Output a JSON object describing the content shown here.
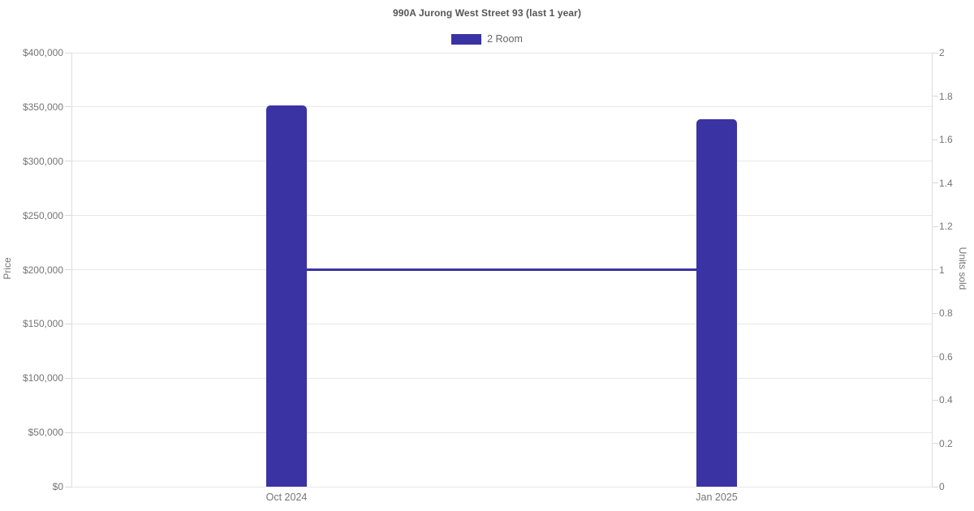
{
  "chart_data": {
    "type": "bar",
    "subtype": "bar+line combo, dual y-axis",
    "title": "990A Jurong West Street 93 (last 1 year)",
    "categories": [
      "Oct 2024",
      "Jan 2025"
    ],
    "series": [
      {
        "name": "2 Room",
        "type": "bar",
        "axis": "left",
        "measure": "Price",
        "values": [
          351500,
          339000
        ]
      },
      {
        "name": "2 Room",
        "type": "line",
        "axis": "right",
        "measure": "Units sold",
        "values": [
          1,
          1
        ]
      }
    ],
    "left_axis": {
      "label": "Price",
      "min": 0,
      "max": 400000,
      "tick_values": [
        400000,
        350000,
        300000,
        250000,
        200000,
        150000,
        100000,
        50000,
        0
      ],
      "tick_labels": [
        "$400,000",
        "$350,000",
        "$300,000",
        "$250,000",
        "$200,000",
        "$150,000",
        "$100,000",
        "$50,000",
        "$0"
      ]
    },
    "right_axis": {
      "label": "Units sold",
      "min": 0,
      "max": 2,
      "tick_values": [
        2,
        1.8,
        1.6,
        1.4,
        1.2,
        1,
        0.8,
        0.6,
        0.4,
        0.2,
        0
      ],
      "tick_labels": [
        "2",
        "1.8",
        "1.6",
        "1.4",
        "1.2",
        "1",
        "0.8",
        "0.6",
        "0.4",
        "0.2",
        "0"
      ]
    },
    "legend": {
      "position": "top",
      "entries": [
        {
          "label": "2 Room",
          "color": "#3a33a3"
        }
      ]
    },
    "grid": "horizontal gridlines at left-axis ticks only",
    "colors": {
      "bar": "#3a33a3",
      "line": "#3a33a3",
      "gridline": "#e7e7e7",
      "axis_line": "#dedede",
      "tick_text": "#757575",
      "title_text": "#555555",
      "legend_text": "#666666",
      "background": "#ffffff"
    }
  }
}
